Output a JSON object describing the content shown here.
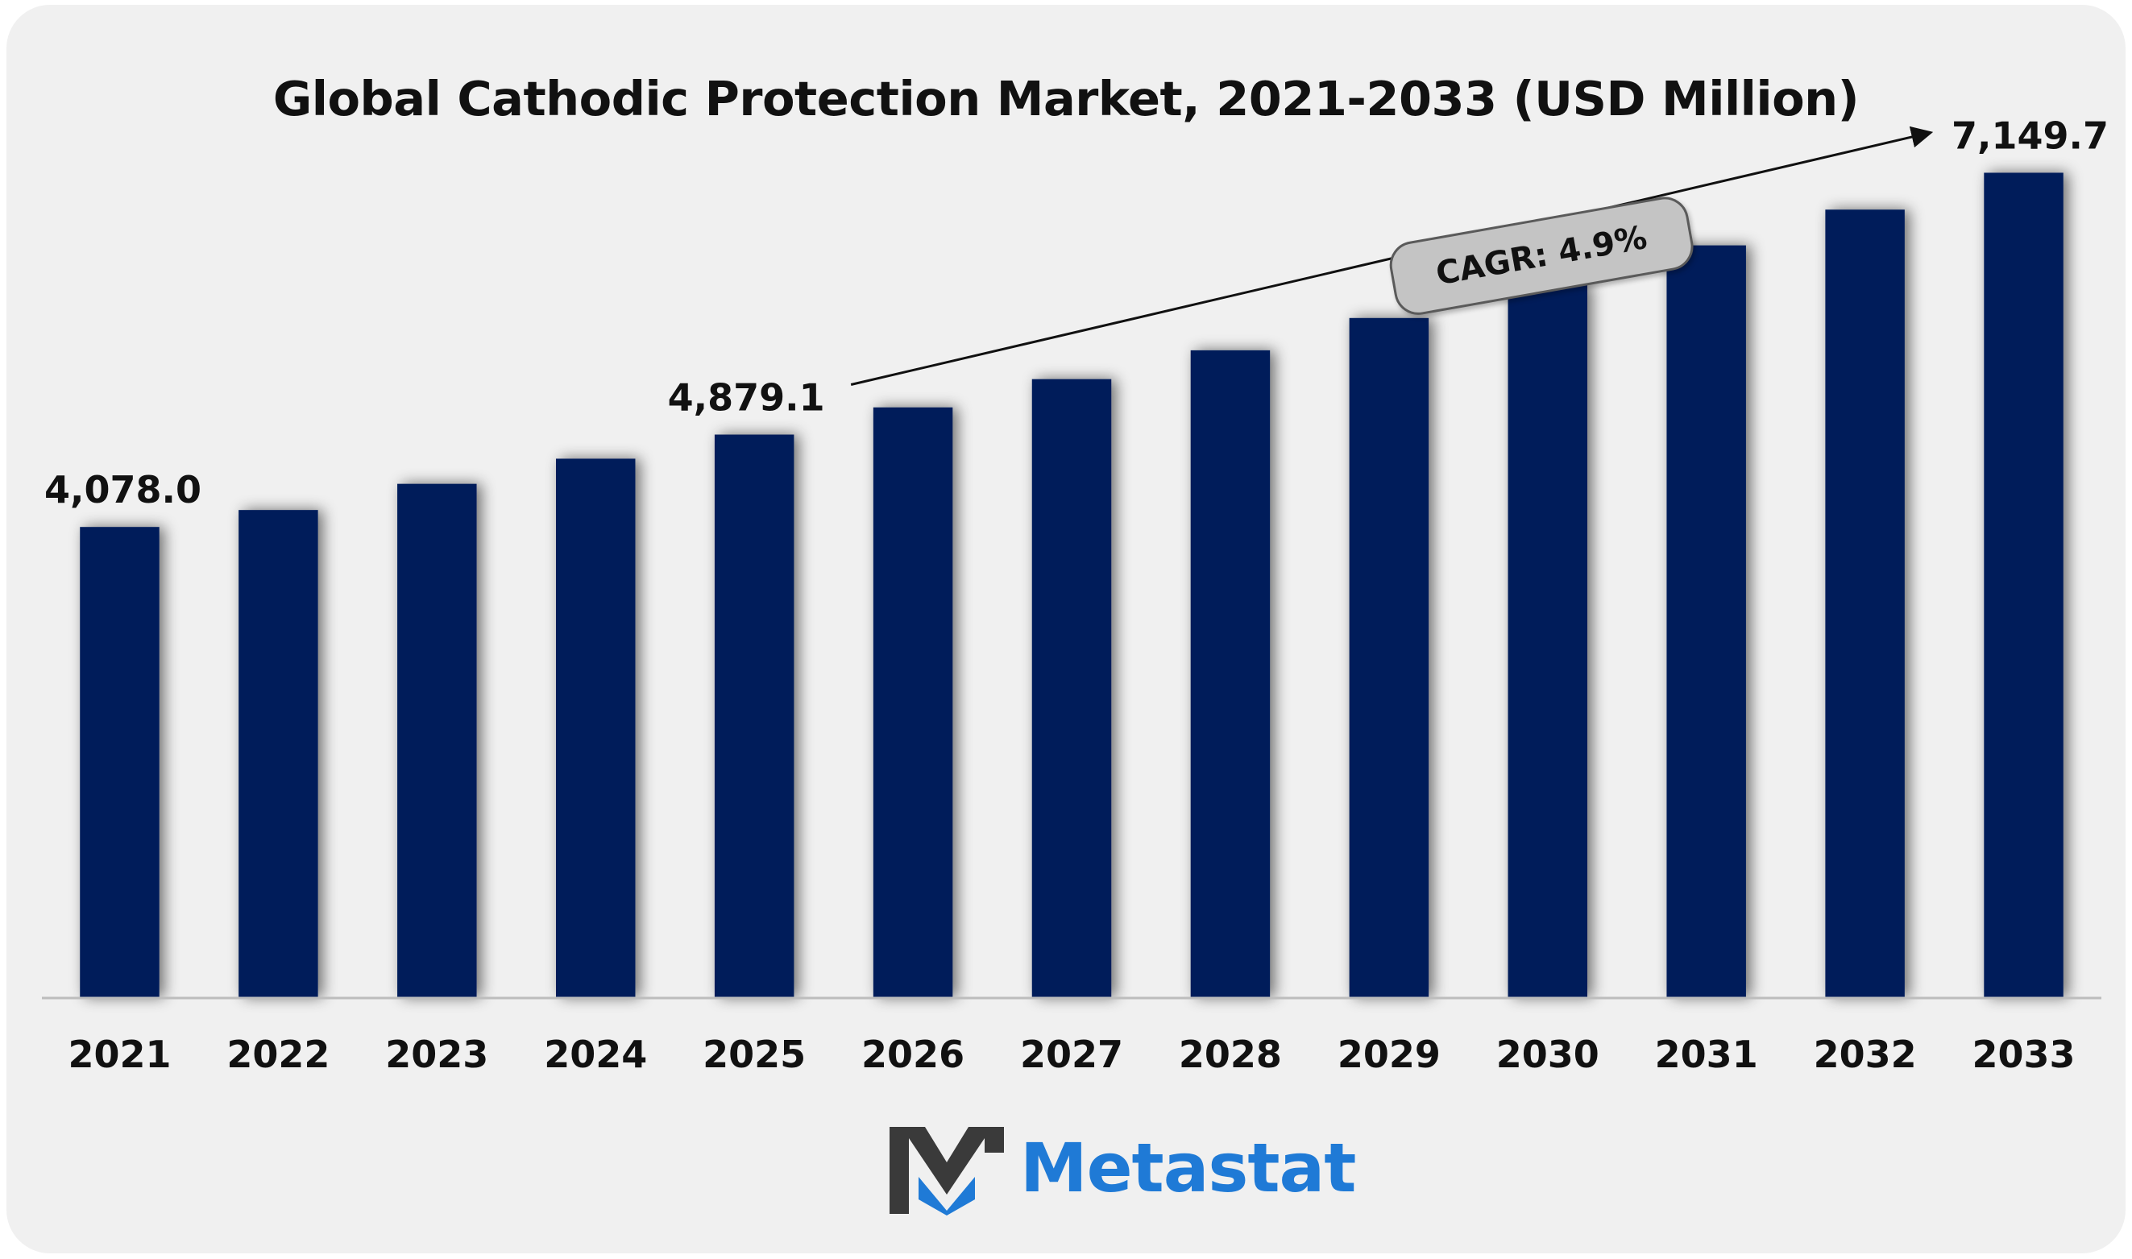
{
  "title": "Global Cathodic Protection Market, 2021-2033 (USD Million)",
  "cagr_label": "CAGR: 4.9%",
  "brand": {
    "name": "Metastat",
    "color": "#1f7ad6",
    "mark_dark": "#3a3a3a",
    "mark_blue": "#1f7ad6"
  },
  "colors": {
    "bar": "#051e5a",
    "background": "#f0f0f0",
    "text": "#111111"
  },
  "chart_data": {
    "type": "bar",
    "title": "Global Cathodic Protection Market, 2021-2033 (USD Million)",
    "xlabel": "",
    "ylabel": "",
    "categories": [
      "2021",
      "2022",
      "2023",
      "2024",
      "2025",
      "2026",
      "2027",
      "2028",
      "2029",
      "2030",
      "2031",
      "2032",
      "2033"
    ],
    "values": [
      4078.0,
      4225,
      4452,
      4670,
      4879.1,
      5115,
      5360,
      5610,
      5890,
      6180,
      6520,
      6830,
      7149.7
    ],
    "data_labels": [
      {
        "index": 0,
        "text": "4,078.0"
      },
      {
        "index": 4,
        "text": "4,879.1"
      },
      {
        "index": 12,
        "text": "7,149.7"
      }
    ],
    "ylim": [
      0,
      7600
    ],
    "grid": false,
    "legend": "none",
    "annotation": {
      "text": "CAGR: 4.9%",
      "from_index": 4,
      "to_index": 12
    }
  }
}
